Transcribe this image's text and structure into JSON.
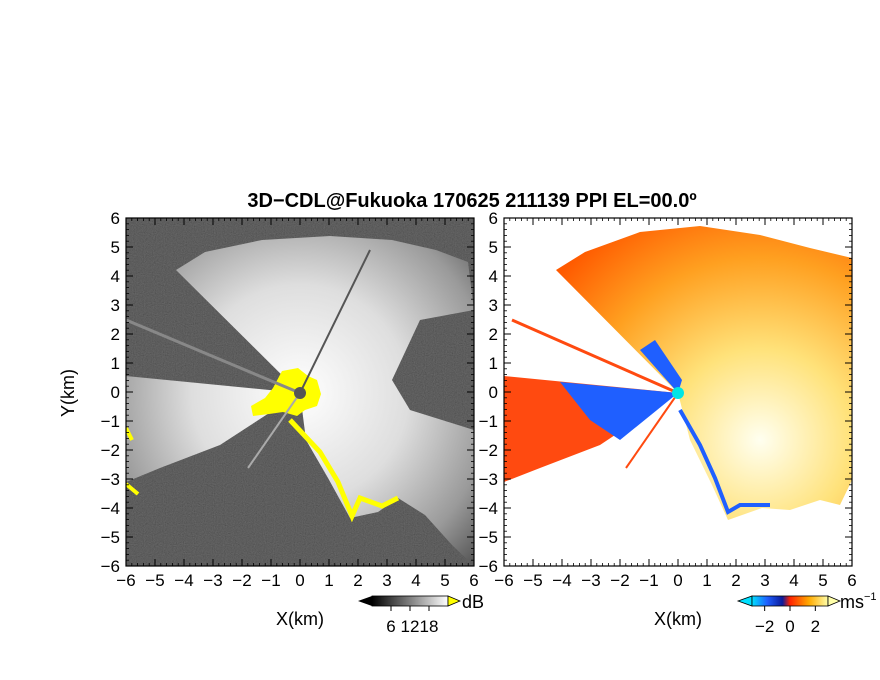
{
  "chart_data": {
    "type": "heatmap",
    "title": "3D−CDL@Fukuoka 170625 211139 PPI EL=00.0º",
    "panels": [
      {
        "name": "left",
        "xlabel": "X(km)",
        "ylabel": "Y(km)",
        "xlim": [
          -6,
          6
        ],
        "ylim": [
          -6,
          6
        ],
        "x_ticks": [
          "−6",
          "−5",
          "−4",
          "−3",
          "−2",
          "−1",
          "0",
          "1",
          "2",
          "3",
          "4",
          "5",
          "6"
        ],
        "y_ticks": [
          "6",
          "5",
          "4",
          "3",
          "2",
          "1",
          "0",
          "−1",
          "−2",
          "−3",
          "−4",
          "−5",
          "−6"
        ],
        "colorbar": {
          "unit": "dB",
          "ticks": [
            "6",
            "12",
            "18"
          ],
          "range": [
            0,
            24
          ]
        }
      },
      {
        "name": "right",
        "xlabel": "X(km)",
        "ylabel": "",
        "xlim": [
          -6,
          6
        ],
        "ylim": [
          -6,
          6
        ],
        "x_ticks": [
          "−6",
          "−5",
          "−4",
          "−3",
          "−2",
          "−1",
          "0",
          "1",
          "2",
          "3",
          "4",
          "5",
          "6"
        ],
        "y_ticks": [
          "6",
          "5",
          "4",
          "3",
          "2",
          "1",
          "0",
          "−1",
          "−2",
          "−3",
          "−4",
          "−5",
          "−6"
        ],
        "colorbar": {
          "unit": "ms",
          "unit_sup": "−1",
          "ticks": [
            "−2",
            "0",
            "2"
          ],
          "range": [
            -3,
            3
          ]
        }
      }
    ],
    "colors": {
      "snr_saturated": "#ffff00",
      "snr_background": "#2a2a2a",
      "vel_negative": "#1f5fff",
      "vel_zero": "#ff3300",
      "vel_positive": "#ffffaa",
      "station_marker_left": "#555555",
      "station_marker_right": "#00e5e5"
    }
  }
}
